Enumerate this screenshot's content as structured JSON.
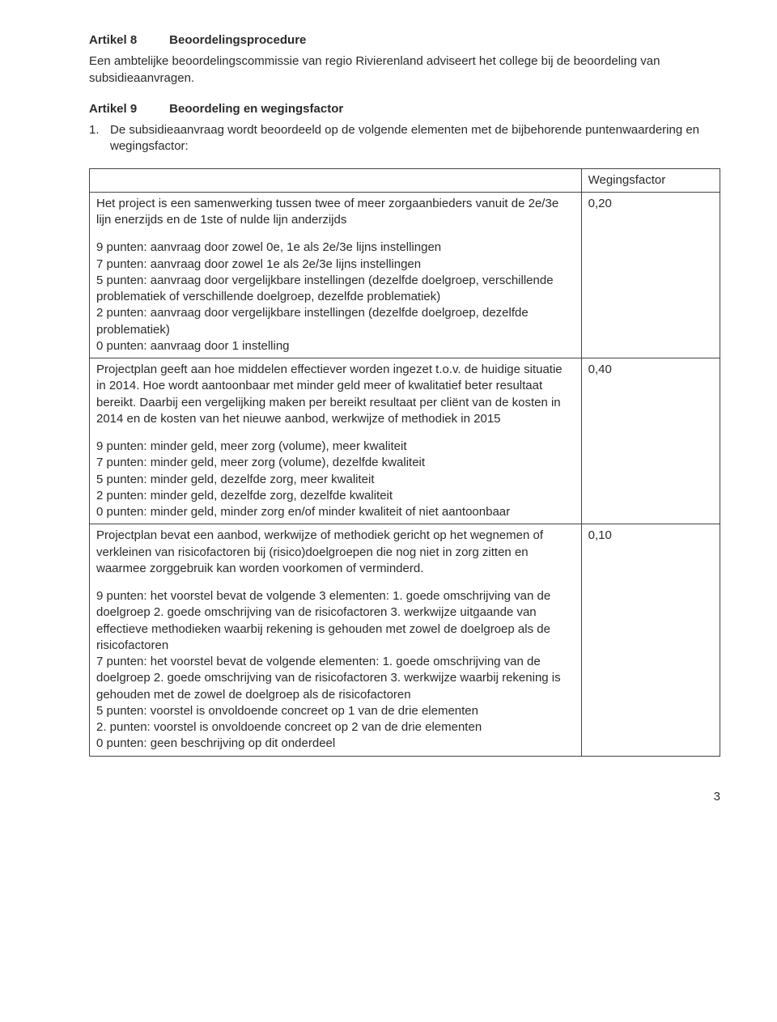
{
  "artikel8": {
    "label": "Artikel 8",
    "title": "Beoordelingsprocedure",
    "body": "Een ambtelijke beoordelingscommissie van regio Rivierenland adviseert het college bij de beoordeling van subsidieaanvragen."
  },
  "artikel9": {
    "label": "Artikel 9",
    "title": "Beoordeling en wegingsfactor",
    "item1_num": "1.",
    "item1_text": "De subsidieaanvraag wordt beoordeeld op de volgende elementen met de bijbehorende puntenwaardering en wegingsfactor:"
  },
  "table": {
    "header_weight": "Wegingsfactor",
    "rows": [
      {
        "weight": "0,20",
        "para1": "Het project is een samenwerking tussen twee of meer zorgaanbieders vanuit de 2e/3e lijn enerzijds en de 1ste of nulde lijn anderzijds",
        "points": [
          "9 punten: aanvraag door zowel 0e, 1e als 2e/3e lijns instellingen",
          "7 punten: aanvraag door zowel 1e als 2e/3e lijns instellingen",
          "5 punten: aanvraag door vergelijkbare instellingen (dezelfde doelgroep, verschillende problematiek of verschillende doelgroep, dezelfde problematiek)",
          "2 punten: aanvraag door vergelijkbare instellingen (dezelfde doelgroep, dezelfde problematiek)",
          "0 punten: aanvraag door 1 instelling"
        ]
      },
      {
        "weight": "0,40",
        "para1": "Projectplan geeft aan hoe middelen effectiever worden ingezet t.o.v. de huidige situatie in 2014. Hoe wordt aantoonbaar met minder geld meer of kwalitatief beter resultaat bereikt. Daarbij een vergelijking maken per bereikt resultaat per cliënt van de kosten in 2014 en de kosten van het nieuwe aanbod, werkwijze of methodiek in 2015",
        "points": [
          "9 punten: minder geld, meer zorg (volume), meer kwaliteit",
          "7 punten: minder geld, meer zorg (volume), dezelfde kwaliteit",
          "5 punten: minder geld, dezelfde zorg, meer kwaliteit",
          "2 punten: minder geld, dezelfde zorg, dezelfde kwaliteit",
          "0 punten: minder geld, minder zorg en/of minder kwaliteit of niet aantoonbaar"
        ]
      },
      {
        "weight": "0,10",
        "para1": "Projectplan bevat een aanbod, werkwijze of methodiek gericht op het wegnemen of verkleinen van risicofactoren bij (risico)doelgroepen die nog niet in zorg zitten en waarmee zorggebruik kan worden voorkomen of verminderd.",
        "points": [
          "9 punten: het voorstel bevat de volgende 3 elementen: 1. goede omschrijving van de doelgroep 2. goede omschrijving van de risicofactoren 3. werkwijze uitgaande van effectieve methodieken waarbij rekening is gehouden met zowel de doelgroep als de risicofactoren",
          "7 punten: het voorstel bevat de volgende elementen: 1. goede omschrijving van de doelgroep 2. goede omschrijving van de risicofactoren 3. werkwijze waarbij rekening is gehouden met de zowel de doelgroep als de risicofactoren",
          "5 punten: voorstel is onvoldoende concreet op 1 van de drie elementen",
          "2. punten: voorstel is onvoldoende concreet op 2 van de drie elementen",
          "0 punten: geen beschrijving op dit onderdeel"
        ]
      }
    ]
  },
  "page_number": "3"
}
